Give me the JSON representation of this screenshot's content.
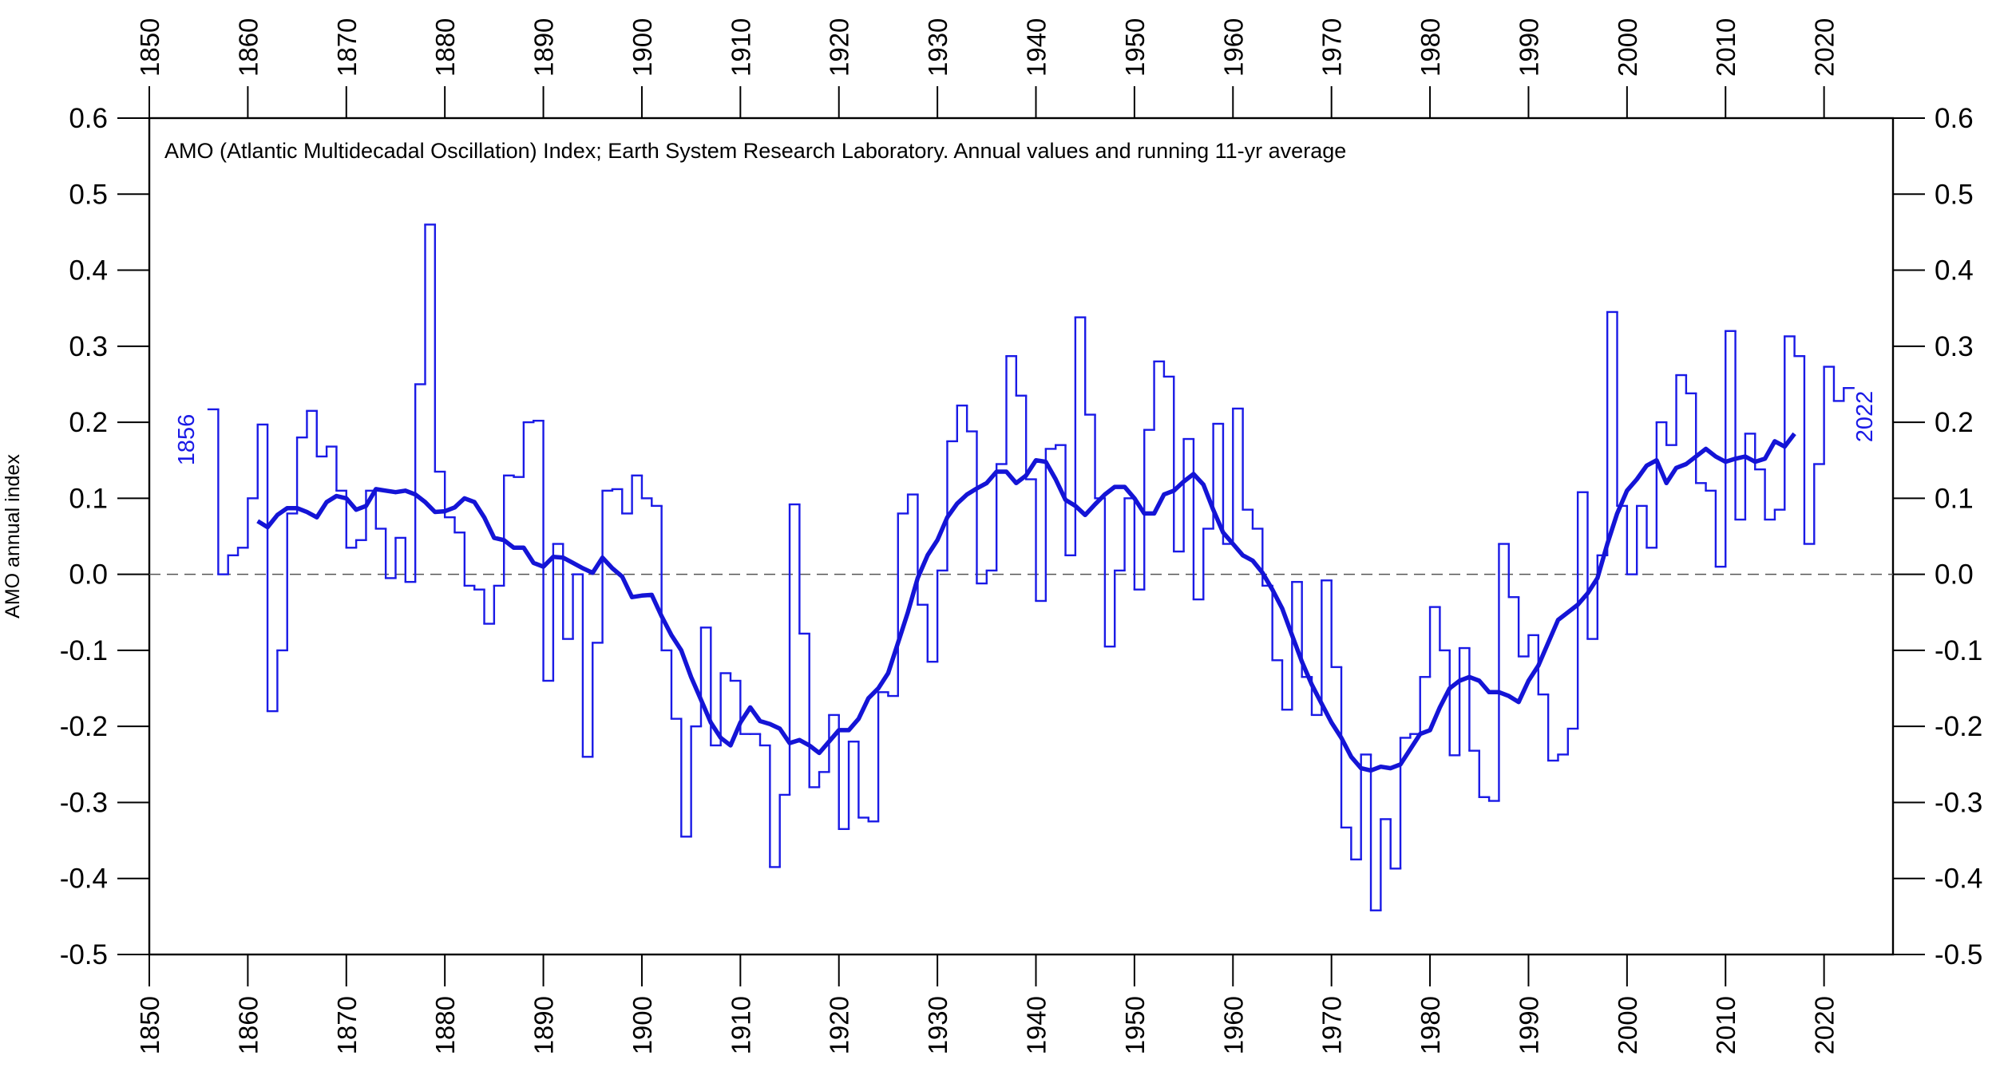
{
  "chart_data": {
    "type": "line",
    "title": "AMO (Atlantic Multidecadal Oscillation) Index; Earth System Research Laboratory. Annual values and running 11-yr average",
    "y_label": "AMO annual index",
    "annotations": [
      "1856",
      "2022"
    ],
    "xlim": [
      1850,
      2027
    ],
    "xticks": [
      1850,
      1860,
      1870,
      1880,
      1890,
      1900,
      1910,
      1920,
      1930,
      1940,
      1950,
      1960,
      1970,
      1980,
      1990,
      2000,
      2010,
      2020
    ],
    "ylim": [
      -0.5,
      0.6
    ],
    "yticks": [
      0.6,
      0.5,
      0.4,
      0.3,
      0.2,
      0.1,
      {
        "value": 0,
        "label": "0.0"
      },
      -0.1,
      -0.2,
      -0.3,
      -0.4,
      -0.5
    ],
    "zero_line": true,
    "series": [
      {
        "style": "step",
        "color": "#1a1ae6",
        "x": [
          1856,
          1857,
          1858,
          1859,
          1860,
          1861,
          1862,
          1863,
          1864,
          1865,
          1866,
          1867,
          1868,
          1869,
          1870,
          1871,
          1872,
          1873,
          1874,
          1875,
          1876,
          1877,
          1878,
          1879,
          1880,
          1881,
          1882,
          1883,
          1884,
          1885,
          1886,
          1887,
          1888,
          1889,
          1890,
          1891,
          1892,
          1893,
          1894,
          1895,
          1896,
          1897,
          1898,
          1899,
          1900,
          1901,
          1902,
          1903,
          1904,
          1905,
          1906,
          1907,
          1908,
          1909,
          1910,
          1911,
          1912,
          1913,
          1914,
          1915,
          1916,
          1917,
          1918,
          1919,
          1920,
          1921,
          1922,
          1923,
          1924,
          1925,
          1926,
          1927,
          1928,
          1929,
          1930,
          1931,
          1932,
          1933,
          1934,
          1935,
          1936,
          1937,
          1938,
          1939,
          1940,
          1941,
          1942,
          1943,
          1944,
          1945,
          1946,
          1947,
          1948,
          1949,
          1950,
          1951,
          1952,
          1953,
          1954,
          1955,
          1956,
          1957,
          1958,
          1959,
          1960,
          1961,
          1962,
          1963,
          1964,
          1965,
          1966,
          1967,
          1968,
          1969,
          1970,
          1971,
          1972,
          1973,
          1974,
          1975,
          1976,
          1977,
          1978,
          1979,
          1980,
          1981,
          1982,
          1983,
          1984,
          1985,
          1986,
          1987,
          1988,
          1989,
          1990,
          1991,
          1992,
          1993,
          1994,
          1995,
          1996,
          1997,
          1998,
          1999,
          2000,
          2001,
          2002,
          2003,
          2004,
          2005,
          2006,
          2007,
          2008,
          2009,
          2010,
          2011,
          2012,
          2013,
          2014,
          2015,
          2016,
          2017,
          2018,
          2019,
          2020,
          2021,
          2022
        ],
        "values": [
          0.217,
          0.0,
          0.025,
          0.035,
          0.1,
          0.197,
          -0.18,
          -0.1,
          0.08,
          0.18,
          0.215,
          0.155,
          0.168,
          0.11,
          0.035,
          0.045,
          0.11,
          0.06,
          -0.005,
          0.048,
          -0.01,
          0.25,
          0.46,
          0.135,
          0.075,
          0.055,
          -0.015,
          -0.02,
          -0.065,
          -0.015,
          0.13,
          0.128,
          0.2,
          0.202,
          -0.14,
          0.04,
          -0.085,
          0.0,
          -0.24,
          -0.09,
          0.11,
          0.112,
          0.08,
          0.13,
          0.1,
          0.09,
          -0.1,
          -0.19,
          -0.345,
          -0.2,
          -0.07,
          -0.225,
          -0.13,
          -0.14,
          -0.21,
          -0.21,
          -0.225,
          -0.385,
          -0.29,
          0.092,
          -0.078,
          -0.28,
          -0.26,
          -0.185,
          -0.335,
          -0.22,
          -0.32,
          -0.325,
          -0.155,
          -0.16,
          0.08,
          0.105,
          -0.04,
          -0.115,
          0.005,
          0.175,
          0.222,
          0.188,
          -0.012,
          0.005,
          0.145,
          0.287,
          0.235,
          0.125,
          -0.035,
          0.165,
          0.17,
          0.025,
          0.338,
          0.21,
          0.1,
          -0.095,
          0.005,
          0.1,
          -0.02,
          0.19,
          0.28,
          0.26,
          0.03,
          0.178,
          -0.033,
          0.06,
          0.198,
          0.04,
          0.218,
          0.085,
          0.06,
          -0.015,
          -0.113,
          -0.178,
          -0.01,
          -0.135,
          -0.185,
          -0.008,
          -0.122,
          -0.333,
          -0.375,
          -0.237,
          -0.442,
          -0.322,
          -0.387,
          -0.215,
          -0.21,
          -0.135,
          -0.043,
          -0.1,
          -0.238,
          -0.097,
          -0.232,
          -0.293,
          -0.298,
          0.04,
          -0.03,
          -0.108,
          -0.08,
          -0.158,
          -0.245,
          -0.237,
          -0.203,
          0.108,
          -0.085,
          0.025,
          0.345,
          0.09,
          0.0,
          0.09,
          0.035,
          0.2,
          0.17,
          0.262,
          0.238,
          0.12,
          0.11,
          0.01,
          0.32,
          0.072,
          0.185,
          0.138,
          0.072,
          0.085,
          0.313,
          0.287,
          0.04,
          0.145,
          0.273,
          0.228,
          0.245
        ]
      },
      {
        "style": "smooth",
        "color": "#1414d6",
        "x": [
          1861,
          1862,
          1863,
          1864,
          1865,
          1866,
          1867,
          1868,
          1869,
          1870,
          1871,
          1872,
          1873,
          1874,
          1875,
          1876,
          1877,
          1878,
          1879,
          1880,
          1881,
          1882,
          1883,
          1884,
          1885,
          1886,
          1887,
          1888,
          1889,
          1890,
          1891,
          1892,
          1893,
          1894,
          1895,
          1896,
          1897,
          1898,
          1899,
          1900,
          1901,
          1902,
          1903,
          1904,
          1905,
          1906,
          1907,
          1908,
          1909,
          1910,
          1911,
          1912,
          1913,
          1914,
          1915,
          1916,
          1917,
          1918,
          1919,
          1920,
          1921,
          1922,
          1923,
          1924,
          1925,
          1926,
          1927,
          1928,
          1929,
          1930,
          1931,
          1932,
          1933,
          1934,
          1935,
          1936,
          1937,
          1938,
          1939,
          1940,
          1941,
          1942,
          1943,
          1944,
          1945,
          1946,
          1947,
          1948,
          1949,
          1950,
          1951,
          1952,
          1953,
          1954,
          1955,
          1956,
          1957,
          1958,
          1959,
          1960,
          1961,
          1962,
          1963,
          1964,
          1965,
          1966,
          1967,
          1968,
          1969,
          1970,
          1971,
          1972,
          1973,
          1974,
          1975,
          1976,
          1977,
          1978,
          1979,
          1980,
          1981,
          1982,
          1983,
          1984,
          1985,
          1986,
          1987,
          1988,
          1989,
          1990,
          1991,
          1992,
          1993,
          1994,
          1995,
          1996,
          1997,
          1998,
          1999,
          2000,
          2001,
          2002,
          2003,
          2004,
          2005,
          2006,
          2007,
          2008,
          2009,
          2010,
          2011,
          2012,
          2013,
          2014,
          2015,
          2016,
          2017
        ],
        "values": [
          0.07,
          0.062,
          0.078,
          0.087,
          0.087,
          0.082,
          0.075,
          0.095,
          0.103,
          0.1,
          0.085,
          0.09,
          0.112,
          0.11,
          0.108,
          0.11,
          0.105,
          0.095,
          0.082,
          0.083,
          0.088,
          0.1,
          0.095,
          0.075,
          0.048,
          0.045,
          0.035,
          0.035,
          0.015,
          0.01,
          0.023,
          0.022,
          0.015,
          0.008,
          0.002,
          0.022,
          0.008,
          -0.003,
          -0.03,
          -0.028,
          -0.027,
          -0.055,
          -0.08,
          -0.1,
          -0.135,
          -0.165,
          -0.195,
          -0.215,
          -0.225,
          -0.195,
          -0.175,
          -0.193,
          -0.197,
          -0.203,
          -0.222,
          -0.218,
          -0.225,
          -0.235,
          -0.22,
          -0.205,
          -0.205,
          -0.19,
          -0.163,
          -0.15,
          -0.13,
          -0.09,
          -0.05,
          -0.005,
          0.025,
          0.045,
          0.075,
          0.093,
          0.105,
          0.113,
          0.12,
          0.135,
          0.135,
          0.12,
          0.13,
          0.15,
          0.148,
          0.125,
          0.098,
          0.09,
          0.078,
          0.092,
          0.105,
          0.115,
          0.115,
          0.1,
          0.08,
          0.08,
          0.105,
          0.11,
          0.122,
          0.132,
          0.118,
          0.085,
          0.055,
          0.04,
          0.025,
          0.018,
          0.002,
          -0.02,
          -0.045,
          -0.08,
          -0.115,
          -0.145,
          -0.17,
          -0.195,
          -0.215,
          -0.24,
          -0.255,
          -0.258,
          -0.253,
          -0.255,
          -0.25,
          -0.23,
          -0.21,
          -0.205,
          -0.175,
          -0.15,
          -0.14,
          -0.135,
          -0.14,
          -0.155,
          -0.155,
          -0.16,
          -0.168,
          -0.14,
          -0.12,
          -0.09,
          -0.06,
          -0.05,
          -0.04,
          -0.025,
          -0.005,
          0.04,
          0.08,
          0.11,
          0.125,
          0.143,
          0.15,
          0.12,
          0.14,
          0.145,
          0.155,
          0.165,
          0.155,
          0.148,
          0.152,
          0.155,
          0.148,
          0.152,
          0.175,
          0.168,
          0.185
        ]
      }
    ]
  }
}
